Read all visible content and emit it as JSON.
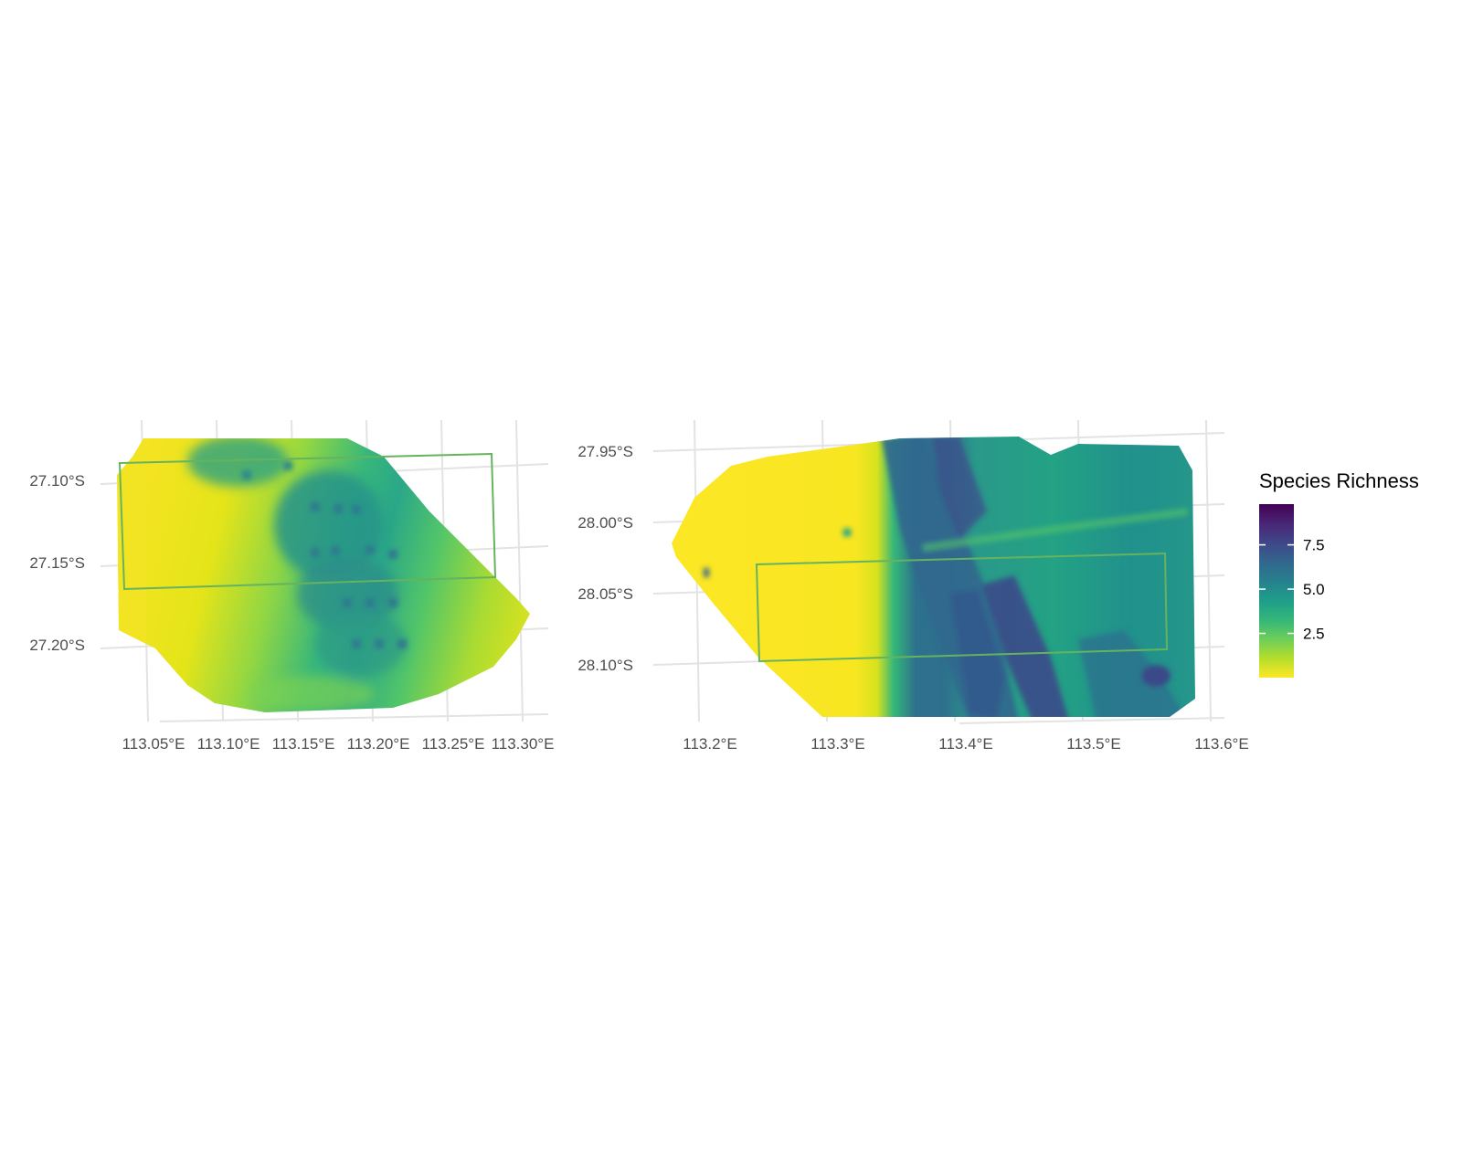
{
  "chart_data": [
    {
      "type": "heatmap",
      "panel": "left",
      "x_ticks": [
        "113.05°E",
        "113.10°E",
        "113.15°E",
        "113.20°E",
        "113.25°E",
        "113.30°E"
      ],
      "y_ticks": [
        "27.10°S",
        "27.15°S",
        "27.20°S"
      ],
      "xlim": [
        113.03,
        113.305
      ],
      "ylim": [
        -27.24,
        -27.07
      ],
      "grid": true,
      "box_outline": {
        "lon_min": 113.035,
        "lon_max": 113.285,
        "lat_min": -27.16,
        "lat_max": -27.085,
        "color": "#66b35f"
      },
      "pattern": "low richness (yellow) in west and east, moderate richness (green/teal, ~4) band trending NNE through centre around 113.15–113.22°E"
    },
    {
      "type": "heatmap",
      "panel": "right",
      "x_ticks": [
        "113.2°E",
        "113.3°E",
        "113.4°E",
        "113.5°E",
        "113.6°E"
      ],
      "y_ticks": [
        "27.95°S",
        "28.00°S",
        "28.05°S",
        "28.10°S"
      ],
      "xlim": [
        113.15,
        113.61
      ],
      "ylim": [
        -28.14,
        -27.93
      ],
      "grid": true,
      "box_outline": {
        "lon_min": 113.235,
        "lon_max": 113.555,
        "lat_min": -28.095,
        "lat_max": -28.025,
        "color": "#66b35f"
      },
      "pattern": "low richness (yellow) west of ~113.36°E, high richness (dark blue/purple, up to ~9) ridges near 113.37–113.47°E, moderate (green, ~3–5) further east"
    }
  ],
  "legend": {
    "title": "Species Richness",
    "ticks": [
      "7.5",
      "5.0",
      "2.5"
    ],
    "tick_values": [
      7.5,
      5.0,
      2.5
    ],
    "range": [
      0,
      9.8
    ],
    "palette": [
      "#fde725",
      "#b5de2b",
      "#6ece58",
      "#35b779",
      "#1f9e89",
      "#26828e",
      "#31688e",
      "#3e4989",
      "#482878",
      "#440154"
    ]
  }
}
